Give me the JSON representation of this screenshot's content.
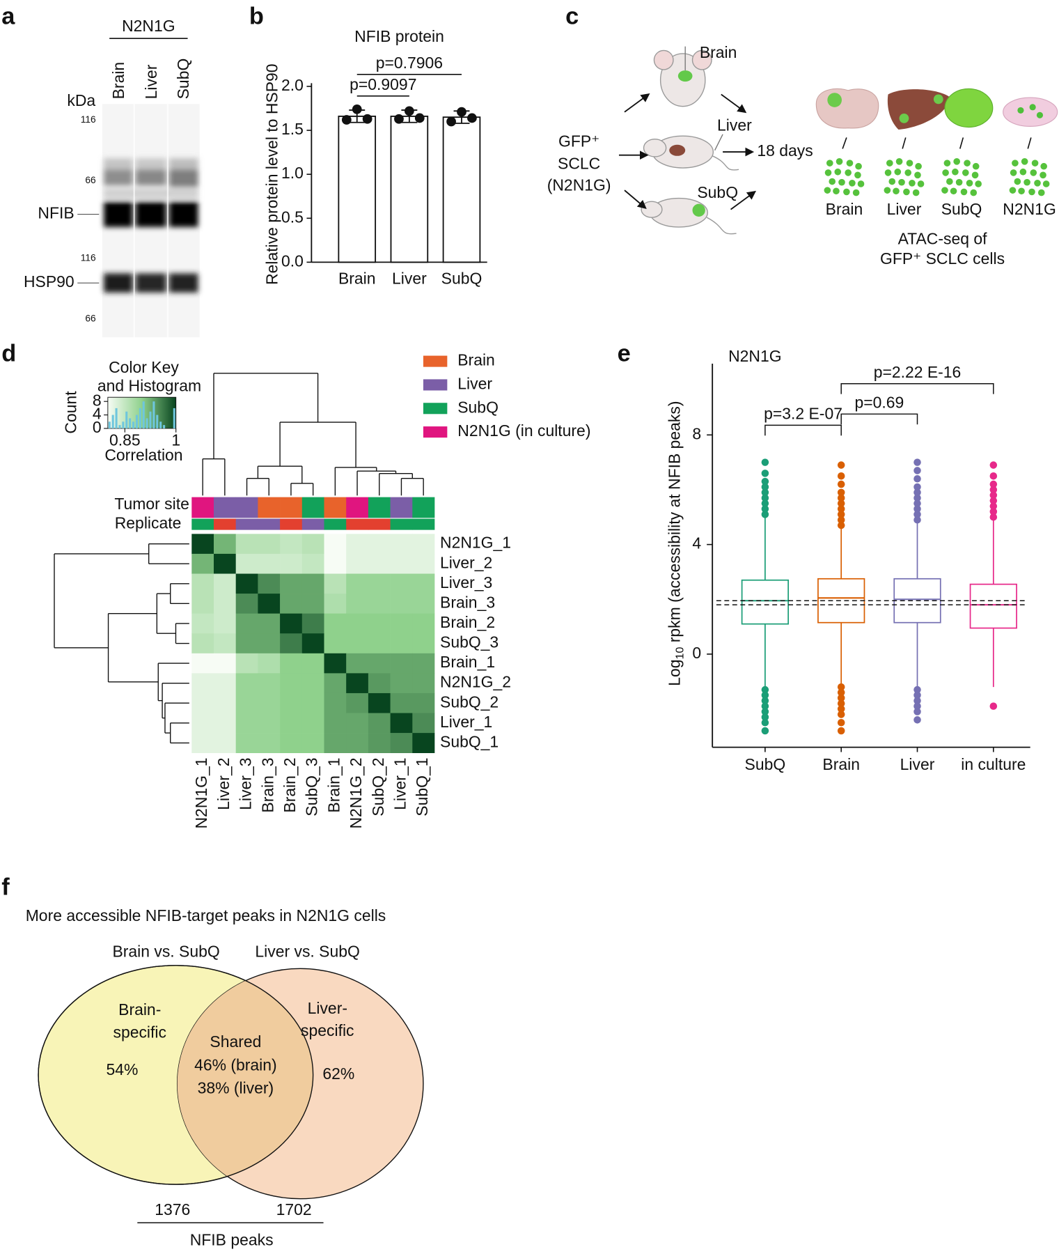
{
  "panel_labels": [
    "a",
    "b",
    "c",
    "d",
    "e",
    "f"
  ],
  "blot": {
    "group": "N2N1G",
    "lanes": [
      "Brain",
      "Liver",
      "SubQ"
    ],
    "unit": "kDa",
    "markers": [
      "116",
      "66",
      "116",
      "66"
    ],
    "bands": [
      "NFIB",
      "HSP90"
    ]
  },
  "diagram": {
    "mouse_sites": [
      "Brain",
      "Liver",
      "SubQ"
    ],
    "source": [
      "GFP⁺",
      "SCLC",
      "(N2N1G)"
    ],
    "time": "18 days",
    "samples": [
      "Brain",
      "Liver",
      "SubQ",
      "N2N1G"
    ],
    "assay": [
      "ATAC-seq of",
      "GFP⁺ SCLC cells"
    ]
  },
  "chart_data": [
    {
      "type": "bar",
      "title": "NFIB protein",
      "y_label": "Relative protein level to HSP90",
      "categories": [
        "Brain",
        "Liver",
        "SubQ"
      ],
      "values": [
        1.66,
        1.66,
        1.65
      ],
      "errors": [
        0.07,
        0.07,
        0.07
      ],
      "points": [
        [
          1.62,
          1.74,
          1.63
        ],
        [
          1.63,
          1.72,
          1.64
        ],
        [
          1.6,
          1.71,
          1.64
        ]
      ],
      "color": "#ffffff",
      "ylim": [
        0,
        2.0
      ],
      "yticks": [
        {
          "value": 0,
          "label": "0.0"
        },
        0.5,
        {
          "value": 1,
          "label": "1.0"
        },
        1.5,
        {
          "value": 2,
          "label": "2.0"
        }
      ],
      "comparisons": [
        {
          "pair": [
            "Brain",
            "Liver"
          ],
          "label": "p=0.9097"
        },
        {
          "pair": [
            "Brain",
            "SubQ"
          ],
          "label": "p=0.7906"
        }
      ]
    },
    {
      "type": "heatmap",
      "samples": [
        "N2N1G_1",
        "Liver_2",
        "Liver_3",
        "Brain_3",
        "Brain_2",
        "SubQ_3",
        "Brain_1",
        "N2N1G_2",
        "SubQ_2",
        "Liver_1",
        "SubQ_1"
      ],
      "values": [
        [
          1,
          0.92,
          0.86,
          0.86,
          0.85,
          0.86,
          0.8,
          0.82,
          0.82,
          0.82,
          0.82
        ],
        [
          0.92,
          1,
          0.84,
          0.84,
          0.84,
          0.85,
          0.8,
          0.82,
          0.82,
          0.82,
          0.82
        ],
        [
          0.86,
          0.84,
          1,
          0.95,
          0.93,
          0.93,
          0.86,
          0.89,
          0.89,
          0.89,
          0.89
        ],
        [
          0.86,
          0.84,
          0.95,
          1,
          0.93,
          0.93,
          0.87,
          0.89,
          0.89,
          0.89,
          0.89
        ],
        [
          0.85,
          0.84,
          0.93,
          0.93,
          1,
          0.96,
          0.9,
          0.9,
          0.9,
          0.9,
          0.9
        ],
        [
          0.86,
          0.85,
          0.93,
          0.93,
          0.96,
          1,
          0.9,
          0.9,
          0.9,
          0.9,
          0.9
        ],
        [
          0.8,
          0.8,
          0.86,
          0.87,
          0.9,
          0.9,
          1,
          0.93,
          0.93,
          0.93,
          0.93
        ],
        [
          0.82,
          0.82,
          0.89,
          0.89,
          0.9,
          0.9,
          0.93,
          1,
          0.94,
          0.93,
          0.93
        ],
        [
          0.82,
          0.82,
          0.89,
          0.89,
          0.9,
          0.9,
          0.93,
          0.94,
          1,
          0.94,
          0.94
        ],
        [
          0.82,
          0.82,
          0.89,
          0.89,
          0.9,
          0.9,
          0.93,
          0.93,
          0.94,
          1,
          0.95
        ],
        [
          0.82,
          0.82,
          0.89,
          0.89,
          0.9,
          0.9,
          0.93,
          0.93,
          0.94,
          0.95,
          1
        ]
      ],
      "colorscale": [
        {
          "value": 0.8,
          "color": "#f7fcf5"
        },
        {
          "value": 0.9,
          "color": "#8fd18c"
        },
        {
          "value": 1,
          "color": "#08451f"
        }
      ],
      "annotation_rows": [
        "Tumor site",
        "Replicate"
      ],
      "tumor_site": [
        "N2N1G (in culture)",
        "Liver",
        "Liver",
        "Brain",
        "Brain",
        "SubQ",
        "Brain",
        "N2N1G (in culture)",
        "SubQ",
        "Liver",
        "SubQ"
      ],
      "replicate": [
        1,
        2,
        3,
        3,
        2,
        3,
        1,
        2,
        2,
        1,
        1
      ],
      "replicate_colors": [
        "#12a25a",
        "#e3402f",
        "#7b5ea7"
      ],
      "legend": [
        {
          "name": "Brain",
          "color": "#e8632b"
        },
        {
          "name": "Liver",
          "color": "#7b5ea7"
        },
        {
          "name": "SubQ",
          "color": "#12a25a"
        },
        {
          "name": "N2N1G (in culture)",
          "color": "#e0157f"
        }
      ],
      "color_key": {
        "title": [
          "Color Key",
          "and Histogram"
        ],
        "x_label": "Correlation",
        "y_label": "Count",
        "xlim": [
          0.8,
          1
        ],
        "xticks": [
          0.85,
          1
        ],
        "ylim": [
          0,
          9
        ],
        "yticks": [
          0,
          4,
          8
        ],
        "bins": [
          0.8,
          0.81,
          0.82,
          0.83,
          0.84,
          0.85,
          0.86,
          0.87,
          0.88,
          0.89,
          0.9,
          0.91,
          0.92,
          0.93,
          0.94,
          0.95,
          0.96,
          0.97,
          0.98,
          0.99,
          1.0
        ],
        "counts": [
          2,
          4,
          6,
          1,
          2,
          5,
          3,
          2,
          4,
          6,
          8,
          3,
          5,
          8,
          4,
          2,
          1,
          0,
          0,
          6
        ],
        "color": "#6ec6dd"
      }
    },
    {
      "type": "box",
      "title": "N2N1G",
      "y_label": {
        "prefix": "Log",
        "subscript": "10",
        "text": " rpkm (accessibility at NFIB peaks)"
      },
      "categories": [
        "SubQ",
        "Brain",
        "Liver",
        "in culture"
      ],
      "colors": [
        "#1b9e77",
        "#d95f02",
        "#7570b3",
        "#e7298a"
      ],
      "stats": [
        {
          "whisker_low": -1.2,
          "q1": 1.1,
          "median": 1.95,
          "q3": 2.7,
          "whisker_high": 5.0,
          "outliers": [
            5.1,
            5.3,
            5.5,
            5.7,
            5.9,
            6.1,
            6.3,
            6.6,
            7.0,
            -1.3,
            -1.5,
            -1.7,
            -1.9,
            -2.1,
            -2.3,
            -2.5,
            -2.8
          ]
        },
        {
          "whisker_low": -1.1,
          "q1": 1.15,
          "median": 2.05,
          "q3": 2.75,
          "whisker_high": 4.6,
          "outliers": [
            4.7,
            4.9,
            5.1,
            5.3,
            5.5,
            5.7,
            5.9,
            6.2,
            6.5,
            6.9,
            -1.2,
            -1.4,
            -1.6,
            -1.8,
            -2.0,
            -2.2,
            -2.5,
            -2.8
          ]
        },
        {
          "whisker_low": -1.2,
          "q1": 1.15,
          "median": 2.0,
          "q3": 2.75,
          "whisker_high": 4.8,
          "outliers": [
            4.9,
            5.1,
            5.3,
            5.5,
            5.7,
            5.9,
            6.1,
            6.4,
            6.7,
            7.0,
            -1.3,
            -1.5,
            -1.7,
            -1.9,
            -2.1,
            -2.4
          ]
        },
        {
          "whisker_low": -1.2,
          "q1": 0.95,
          "median": 1.8,
          "q3": 2.55,
          "whisker_high": 4.9,
          "outliers": [
            5.0,
            5.2,
            5.4,
            5.6,
            5.8,
            6.0,
            6.2,
            6.5,
            6.9,
            -1.9
          ]
        }
      ],
      "reference_lines": [
        1.95,
        1.8
      ],
      "ylim": [
        -3.4,
        10.6
      ],
      "yticks": [
        0,
        4,
        8
      ],
      "comparisons": [
        {
          "pair": [
            "SubQ",
            "Brain"
          ],
          "label": "p=3.2 E-07"
        },
        {
          "pair": [
            "Brain",
            "Liver"
          ],
          "label": "p=0.69"
        },
        {
          "pair": [
            "Brain",
            "in culture"
          ],
          "label": "p=2.22 E-16"
        }
      ]
    }
  ],
  "venn": {
    "title": "More accessible NFIB-target peaks in N2N1G cells",
    "sets": [
      "Brain vs. SubQ",
      "Liver vs. SubQ"
    ],
    "left": [
      "Brain-",
      "specific",
      "54%"
    ],
    "shared": [
      "Shared",
      "46% (brain)",
      "38% (liver)"
    ],
    "right": [
      "Liver-",
      "specific",
      "62%"
    ],
    "totals": [
      "1376",
      "1702"
    ],
    "total_label": "NFIB peaks"
  }
}
